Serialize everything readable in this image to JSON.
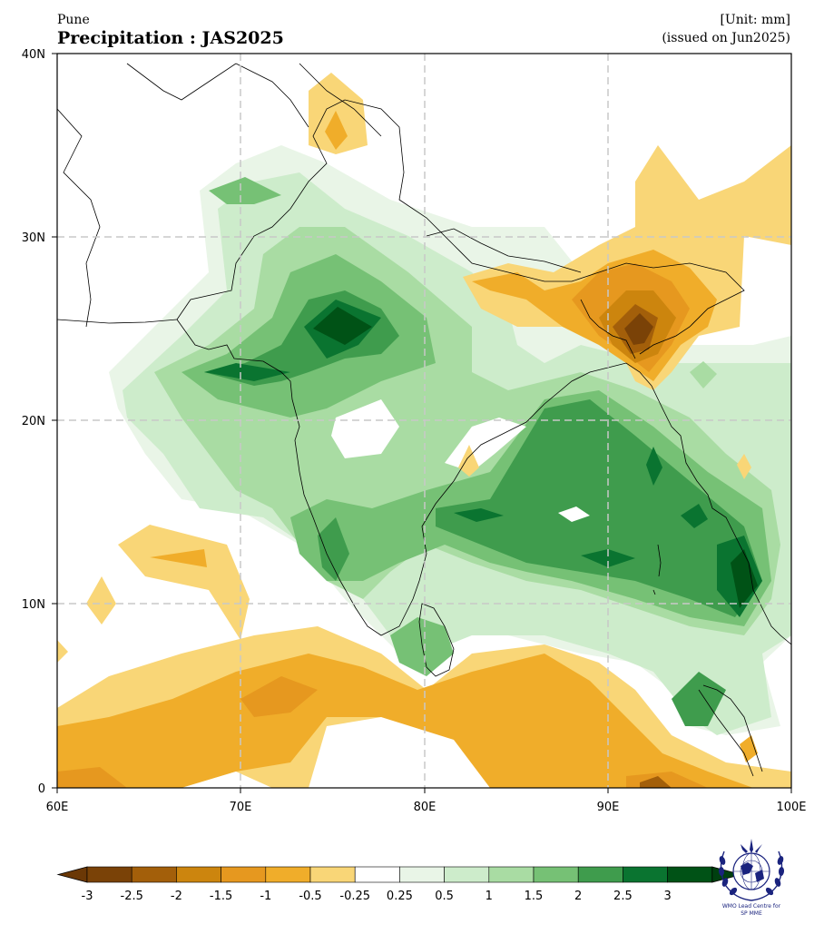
{
  "header": {
    "subtitle": "Pune",
    "title": "Precipitation : JAS2025",
    "unit": "[Unit: mm]",
    "issued": "(issued on Jun2025)"
  },
  "map": {
    "lon_range": [
      60,
      100
    ],
    "lat_range": [
      0,
      40
    ],
    "x_ticks": [
      "60E",
      "70E",
      "80E",
      "90E",
      "100E"
    ],
    "y_ticks": [
      "40N",
      "30N",
      "20N",
      "10N",
      "0"
    ],
    "gridlines": true,
    "field": "precipitation anomaly",
    "region": "South Asia / Indian Ocean"
  },
  "colorbar": {
    "levels": [
      "-3",
      "-2.5",
      "-2",
      "-1.5",
      "-1",
      "-0.5",
      "-0.25",
      "0.25",
      "0.5",
      "1",
      "1.5",
      "2",
      "2.5",
      "3"
    ],
    "colors": [
      "#7a4207",
      "#a35f0a",
      "#cc850e",
      "#e6981f",
      "#f0ad2a",
      "#f9d677",
      "#ffffff",
      "#e9f5e7",
      "#cdeccb",
      "#a9dca3",
      "#76c175",
      "#3f9c4d",
      "#0a7430",
      "#005216"
    ],
    "under_color": "#6b3806",
    "over_color": "#004010"
  },
  "logo": {
    "icon": "wmo-emblem-icon",
    "caption_line1": "WMO Lead Centre for",
    "caption_line2": "SP MME"
  }
}
